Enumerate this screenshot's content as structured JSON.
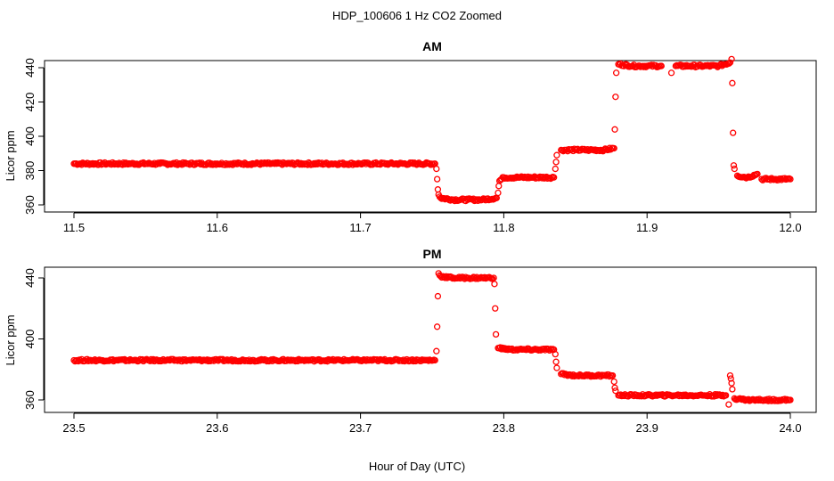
{
  "title": "HDP_100606  1 Hz CO2 Zoomed",
  "xlabel": "Hour of Day (UTC)",
  "colors": {
    "points": "#ff0000",
    "axes": "#000000",
    "background": "#ffffff"
  },
  "chart_data": [
    {
      "type": "scatter",
      "title": "AM",
      "ylabel": "Licor ppm",
      "xlim": [
        11.5,
        12.0
      ],
      "ylim": [
        360,
        447
      ],
      "xticks": [
        "11.5",
        "11.6",
        "11.7",
        "11.8",
        "11.9",
        "12.0"
      ],
      "yticks": [
        "360",
        "380",
        "400",
        "420",
        "440"
      ],
      "grid": false,
      "series": [
        {
          "points": [
            [
              11.5,
              384
            ],
            [
              11.52,
              384
            ],
            [
              11.54,
              384
            ],
            [
              11.56,
              384
            ],
            [
              11.58,
              384
            ],
            [
              11.6,
              384
            ],
            [
              11.62,
              384
            ],
            [
              11.64,
              384
            ],
            [
              11.66,
              384
            ],
            [
              11.68,
              384
            ],
            [
              11.7,
              384
            ],
            [
              11.72,
              384
            ],
            [
              11.74,
              384
            ],
            [
              11.752,
              384
            ],
            [
              11.753,
              381
            ],
            [
              11.7535,
              375
            ],
            [
              11.754,
              369
            ],
            [
              11.7545,
              366
            ],
            [
              11.756,
              364
            ],
            [
              11.765,
              363
            ],
            [
              11.775,
              363
            ],
            [
              11.785,
              363
            ],
            [
              11.795,
              364
            ],
            [
              11.796,
              367
            ],
            [
              11.7965,
              371
            ],
            [
              11.797,
              374
            ],
            [
              11.8,
              376
            ],
            [
              11.81,
              376
            ],
            [
              11.82,
              376
            ],
            [
              11.835,
              376
            ],
            [
              11.836,
              381
            ],
            [
              11.8365,
              385
            ],
            [
              11.837,
              389
            ],
            [
              11.84,
              392
            ],
            [
              11.85,
              392
            ],
            [
              11.86,
              392
            ],
            [
              11.87,
              392
            ],
            [
              11.877,
              393
            ],
            [
              11.8775,
              404
            ],
            [
              11.878,
              423
            ],
            [
              11.8785,
              437
            ],
            [
              11.88,
              442
            ],
            [
              11.89,
              441
            ],
            [
              11.9,
              441
            ],
            [
              11.91,
              441
            ],
            [
              11.917,
              437
            ],
            [
              11.92,
              441
            ],
            [
              11.93,
              441
            ],
            [
              11.94,
              441
            ],
            [
              11.95,
              441
            ],
            [
              11.958,
              443
            ],
            [
              11.959,
              445
            ],
            [
              11.9595,
              431
            ],
            [
              11.96,
              402
            ],
            [
              11.9605,
              383
            ],
            [
              11.961,
              381
            ],
            [
              11.963,
              377
            ],
            [
              11.97,
              376
            ],
            [
              11.977,
              378
            ],
            [
              11.98,
              375
            ],
            [
              11.99,
              375
            ],
            [
              12.0,
              375
            ]
          ]
        }
      ]
    },
    {
      "type": "scatter",
      "title": "PM",
      "ylabel": "Licor ppm",
      "xlim": [
        23.5,
        24.0
      ],
      "ylim": [
        354,
        446
      ],
      "xticks": [
        "23.5",
        "23.6",
        "23.7",
        "23.8",
        "23.9",
        "24.0"
      ],
      "yticks": [
        "360",
        "400",
        "440"
      ],
      "grid": false,
      "series": [
        {
          "points": [
            [
              23.5,
              386
            ],
            [
              23.52,
              386
            ],
            [
              23.54,
              386
            ],
            [
              23.56,
              386
            ],
            [
              23.58,
              386
            ],
            [
              23.6,
              386
            ],
            [
              23.62,
              386
            ],
            [
              23.64,
              386
            ],
            [
              23.66,
              386
            ],
            [
              23.68,
              386
            ],
            [
              23.7,
              386
            ],
            [
              23.72,
              386
            ],
            [
              23.74,
              386
            ],
            [
              23.752,
              386
            ],
            [
              23.753,
              392
            ],
            [
              23.7535,
              408
            ],
            [
              23.754,
              428
            ],
            [
              23.7545,
              443
            ],
            [
              23.756,
              441
            ],
            [
              23.765,
              440
            ],
            [
              23.775,
              440
            ],
            [
              23.785,
              440
            ],
            [
              23.793,
              440
            ],
            [
              23.7935,
              436
            ],
            [
              23.794,
              420
            ],
            [
              23.7945,
              403
            ],
            [
              23.796,
              394
            ],
            [
              23.805,
              393
            ],
            [
              23.815,
              393
            ],
            [
              23.825,
              393
            ],
            [
              23.835,
              393
            ],
            [
              23.836,
              390
            ],
            [
              23.8365,
              385
            ],
            [
              23.837,
              381
            ],
            [
              23.84,
              377
            ],
            [
              23.85,
              376
            ],
            [
              23.86,
              376
            ],
            [
              23.87,
              376
            ],
            [
              23.876,
              376
            ],
            [
              23.877,
              372
            ],
            [
              23.8775,
              368
            ],
            [
              23.878,
              366
            ],
            [
              23.88,
              363
            ],
            [
              23.9,
              363
            ],
            [
              23.92,
              363
            ],
            [
              23.94,
              363
            ],
            [
              23.955,
              363
            ],
            [
              23.957,
              357
            ],
            [
              23.958,
              376
            ],
            [
              23.9585,
              374
            ],
            [
              23.959,
              371
            ],
            [
              23.9595,
              367
            ],
            [
              23.961,
              361
            ],
            [
              23.97,
              360
            ],
            [
              23.98,
              360
            ],
            [
              23.99,
              360
            ],
            [
              24.0,
              360
            ]
          ]
        }
      ]
    }
  ]
}
